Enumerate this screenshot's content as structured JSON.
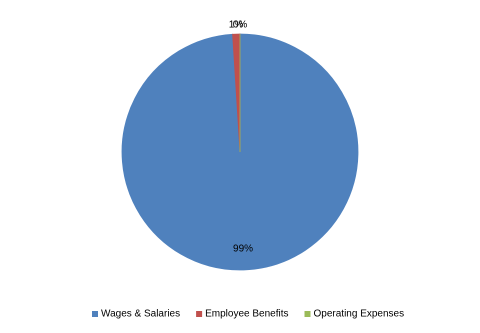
{
  "chart_data": {
    "type": "pie",
    "categories": [
      "Wages & Salaries",
      "Employee Benefits",
      "Operating Expenses"
    ],
    "values": [
      99,
      1,
      0
    ],
    "value_labels": [
      "99%",
      "1%",
      "0%"
    ],
    "colors": [
      "#4f81bd",
      "#c0504d",
      "#9bbb59"
    ],
    "legend": "bottom"
  }
}
